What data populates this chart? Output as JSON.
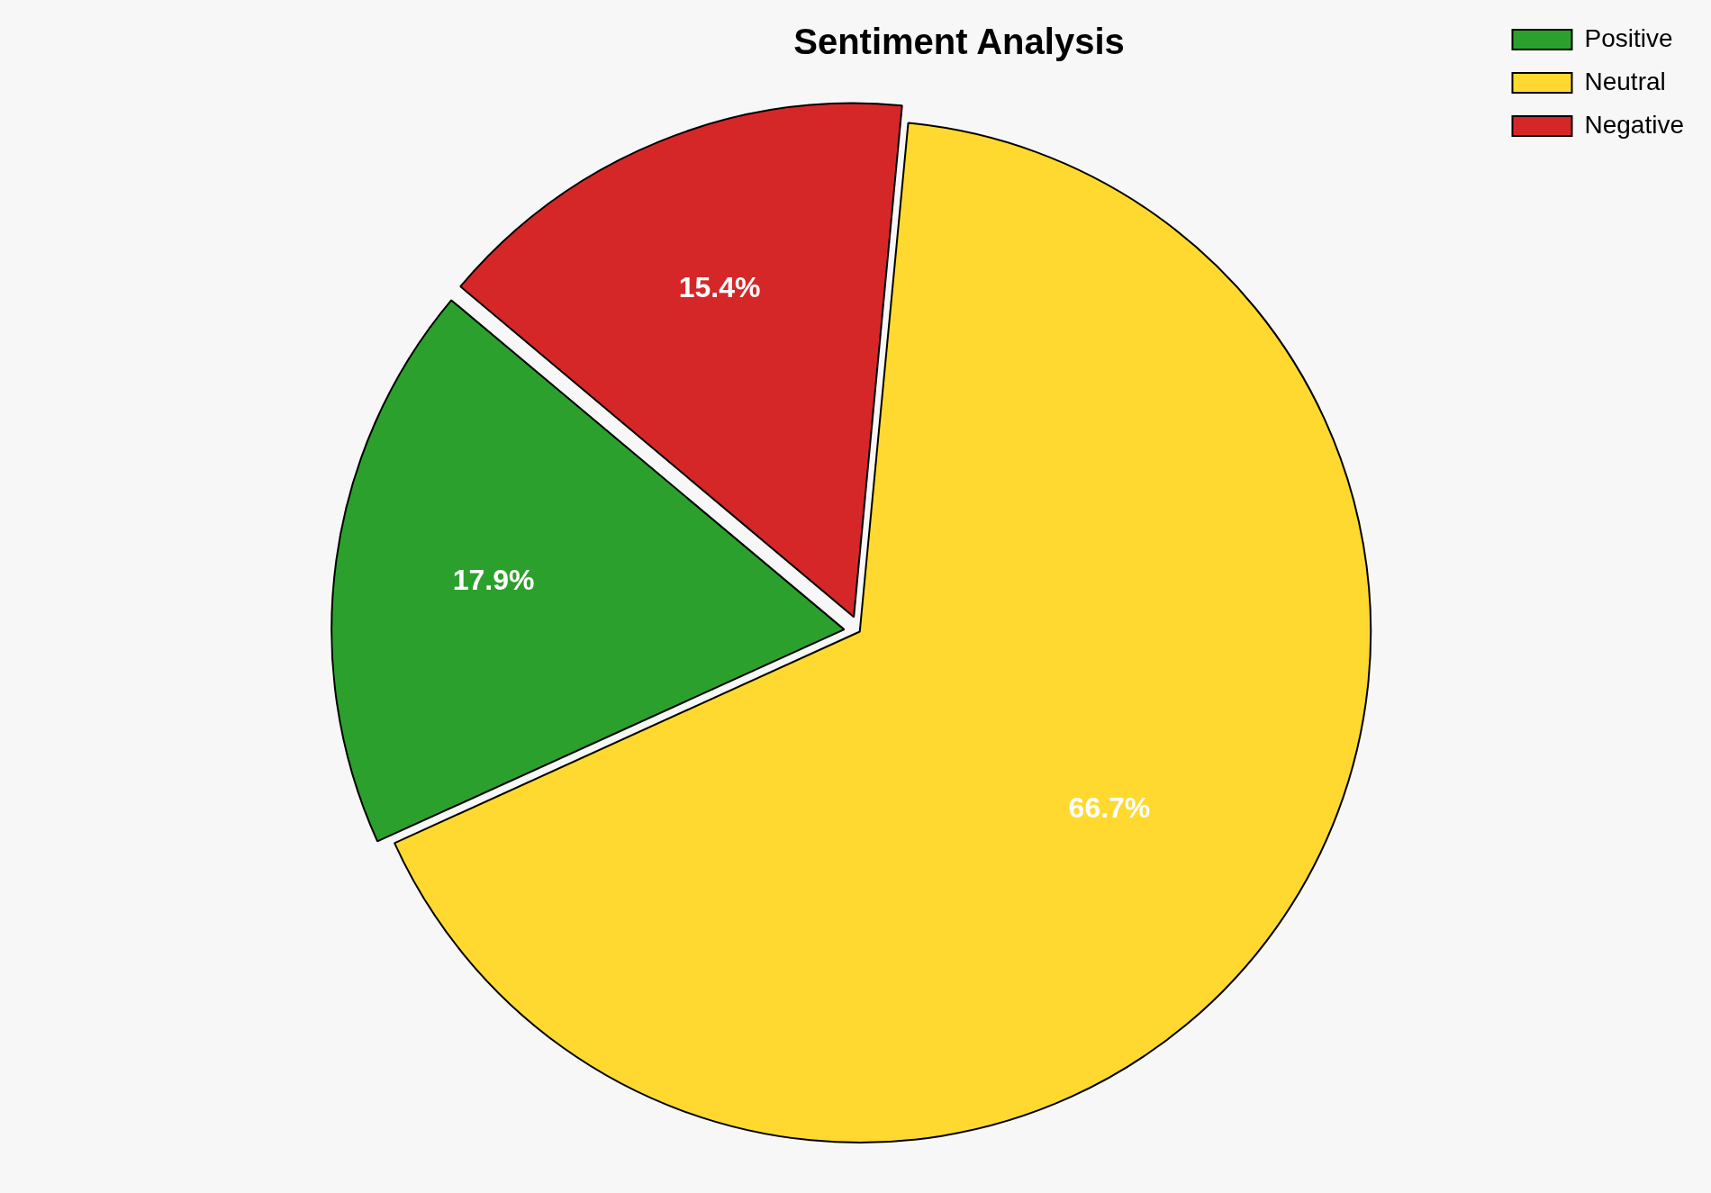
{
  "chart_data": {
    "type": "pie",
    "title": "Sentiment Analysis",
    "categories": [
      "Positive",
      "Neutral",
      "Negative"
    ],
    "values": [
      17.9,
      66.7,
      15.4
    ],
    "colors": [
      "#2ca02c",
      "#ffd92f",
      "#d62728"
    ],
    "value_labels": [
      "17.9%",
      "66.7%",
      "15.4%"
    ],
    "legend": "top right"
  }
}
